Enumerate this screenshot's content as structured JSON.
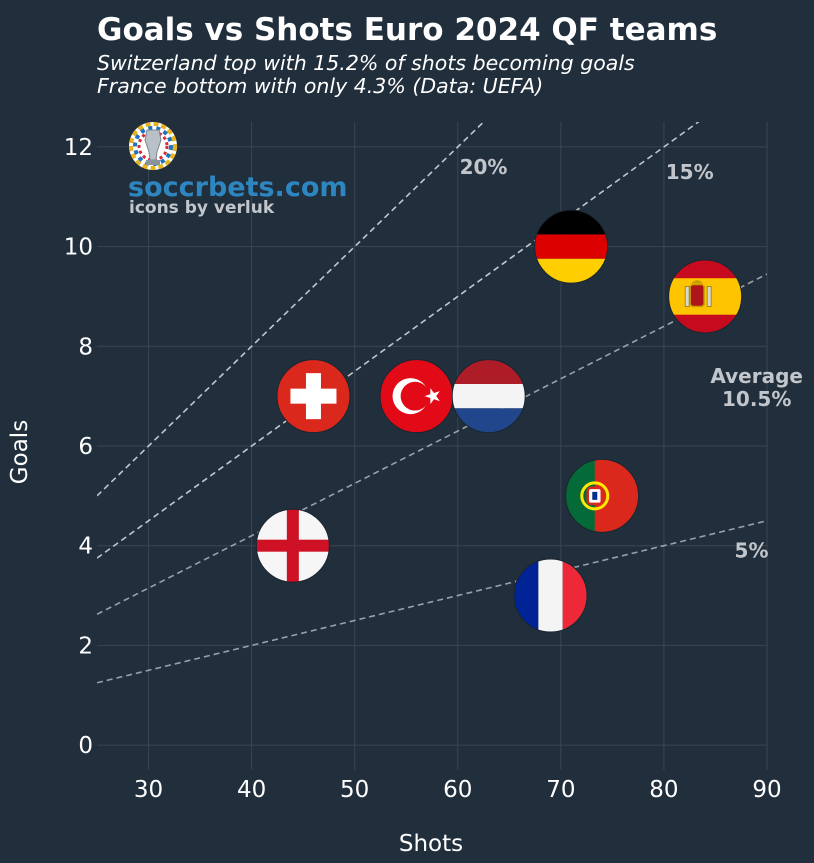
{
  "chart_data": {
    "type": "scatter",
    "title": "Goals vs Shots Euro 2024 QF teams",
    "subtitle_lines": [
      "Switzerland top with 15.2% of shots becoming goals",
      "France bottom with only 4.3% (Data: UEFA)"
    ],
    "xlabel": "Shots",
    "ylabel": "Goals",
    "xlim": [
      25,
      90
    ],
    "ylim": [
      -0.5,
      12.5
    ],
    "xticks": [
      30,
      40,
      50,
      60,
      70,
      80,
      90
    ],
    "yticks": [
      0,
      2,
      4,
      6,
      8,
      10,
      12
    ],
    "grid": true,
    "points": [
      {
        "team": "Germany",
        "shots": 71,
        "goals": 10,
        "flag": "germany-flag-icon"
      },
      {
        "team": "Spain",
        "shots": 84,
        "goals": 9,
        "flag": "spain-flag-icon"
      },
      {
        "team": "Switzerland",
        "shots": 46,
        "goals": 7,
        "flag": "switzerland-flag-icon"
      },
      {
        "team": "Turkey",
        "shots": 56,
        "goals": 7,
        "flag": "turkey-flag-icon"
      },
      {
        "team": "Netherlands",
        "shots": 63,
        "goals": 7,
        "flag": "netherlands-flag-icon"
      },
      {
        "team": "Portugal",
        "shots": 74,
        "goals": 5,
        "flag": "portugal-flag-icon"
      },
      {
        "team": "England",
        "shots": 44,
        "goals": 4,
        "flag": "england-flag-icon"
      },
      {
        "team": "France",
        "shots": 69,
        "goals": 3,
        "flag": "france-flag-icon"
      }
    ],
    "reference_lines": [
      {
        "rate": 0.2,
        "label": "20%",
        "label_at": [
          62.5,
          11.6
        ]
      },
      {
        "rate": 0.15,
        "label": "15%",
        "label_at": [
          82.5,
          11.5
        ]
      },
      {
        "rate": 0.105,
        "label": "Average",
        "label2": "10.5%",
        "label_at": [
          89,
          7.4
        ]
      },
      {
        "rate": 0.05,
        "label": "5%",
        "label_at": [
          88.5,
          3.9
        ]
      }
    ]
  },
  "branding": {
    "site": "soccrbets.com",
    "credit": "icons by verluk",
    "logo": "euro-2024-trophy-icon"
  },
  "colors": {
    "background": "#212e3c",
    "grid": "#3a4654",
    "reference_line": "#c2c6cb",
    "brand": "#2e86c1"
  }
}
